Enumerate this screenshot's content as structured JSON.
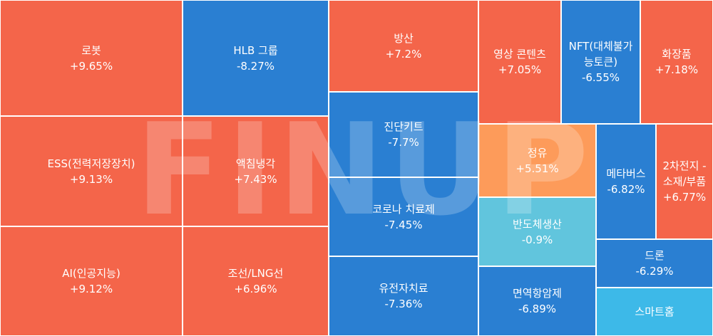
{
  "chart_data": {
    "type": "treemap",
    "colors": {
      "up": "#f4654a",
      "down": "#2a7fd2",
      "up_light": "#fd9b5a",
      "down_light": "#61c5dd",
      "down_sky": "#3db9e8"
    },
    "items": [
      {
        "name": "로봇",
        "change": "+9.65%",
        "color": "up"
      },
      {
        "name": "ESS(전력저장장치)",
        "change": "+9.13%",
        "color": "up"
      },
      {
        "name": "AI(인공지능)",
        "change": "+9.12%",
        "color": "up"
      },
      {
        "name": "HLB 그룹",
        "change": "-8.27%",
        "color": "down"
      },
      {
        "name": "액침냉각",
        "change": "+7.43%",
        "color": "up"
      },
      {
        "name": "조선/LNG선",
        "change": "+6.96%",
        "color": "up"
      },
      {
        "name": "방산",
        "change": "+7.2%",
        "color": "up"
      },
      {
        "name": "진단키트",
        "change": "-7.7%",
        "color": "down"
      },
      {
        "name": "코로나 치료제",
        "change": "-7.45%",
        "color": "down"
      },
      {
        "name": "유전자치료",
        "change": "-7.36%",
        "color": "down"
      },
      {
        "name": "영상 콘텐츠",
        "change": "+7.05%",
        "color": "up"
      },
      {
        "name": "NFT(대체불가능토큰)",
        "change": "-6.55%",
        "color": "down"
      },
      {
        "name": "화장품",
        "change": "+7.18%",
        "color": "up"
      },
      {
        "name": "정유",
        "change": "+5.51%",
        "color": "up_light"
      },
      {
        "name": "반도체생산",
        "change": "-0.9%",
        "color": "down_light"
      },
      {
        "name": "면역항암제",
        "change": "-6.89%",
        "color": "down"
      },
      {
        "name": "메타버스",
        "change": "-6.82%",
        "color": "down"
      },
      {
        "name": "2차전지 - 소재/부품",
        "change": "+6.77%",
        "color": "up"
      },
      {
        "name": "드론",
        "change": "-6.29%",
        "color": "down"
      },
      {
        "name": "스마트홈",
        "change": "",
        "color": "down_sky"
      }
    ]
  },
  "watermark": "FINUP"
}
